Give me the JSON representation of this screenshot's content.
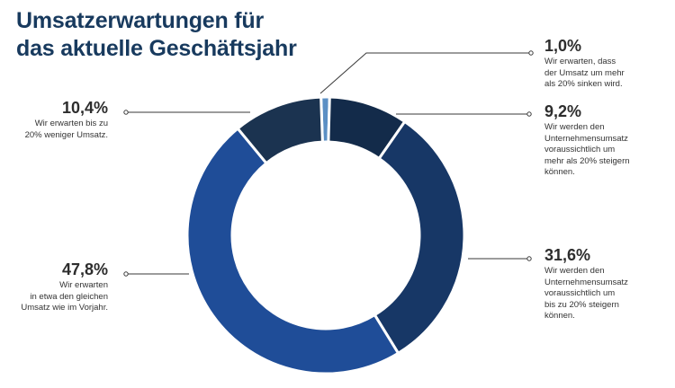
{
  "title_lines": [
    "Umsatzerwartungen für",
    "das aktuelle Geschäftsjahr"
  ],
  "colors": {
    "title": "#183a5e",
    "slice_sinken_mehr_20": "#5b8fc4",
    "slice_steigern_mehr_20": "#132b4a",
    "slice_steigern_bis_20": "#173766",
    "slice_gleich": "#1f4d98",
    "slice_weniger_bis_20": "#1b3350",
    "leader": "#3a3a3a"
  },
  "chart_data": {
    "type": "pie",
    "donut": true,
    "title": "Umsatzerwartungen für das aktuelle Geschäftsjahr",
    "slices": [
      {
        "value": 1.0,
        "label": "1,0%",
        "description": [
          "Wir erwarten, dass",
          "der Umsatz um mehr",
          "als 20% sinken wird."
        ]
      },
      {
        "value": 9.2,
        "label": "9,2%",
        "description": [
          "Wir werden den",
          "Unternehmensumsatz",
          "voraussichtlich um",
          "mehr als 20% steigern",
          "können."
        ]
      },
      {
        "value": 31.6,
        "label": "31,6%",
        "description": [
          "Wir werden den",
          "Unternehmensumsatz",
          "voraussichtlich um",
          "bis zu 20% steigern",
          "können."
        ]
      },
      {
        "value": 47.8,
        "label": "47,8%",
        "description": [
          "Wir erwarten",
          "in etwa den gleichen",
          "Umsatz wie im Vorjahr."
        ]
      },
      {
        "value": 10.4,
        "label": "10,4%",
        "description": [
          "Wir erwarten bis zu",
          "20% weniger Umsatz."
        ]
      }
    ]
  }
}
